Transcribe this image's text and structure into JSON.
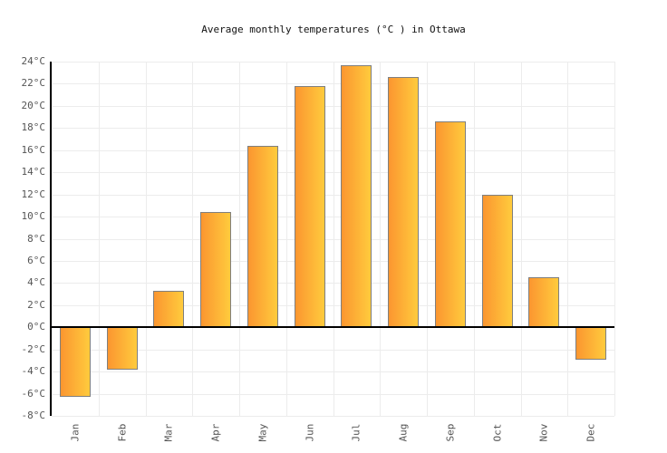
{
  "title": "Average monthly temperatures (°C ) in Ottawa",
  "chart_data": {
    "type": "bar",
    "title": "Average monthly temperatures (°C ) in Ottawa",
    "categories": [
      "Jan",
      "Feb",
      "Mar",
      "Apr",
      "May",
      "Jun",
      "Jul",
      "Aug",
      "Sep",
      "Oct",
      "Nov",
      "Dec"
    ],
    "values": [
      -6.3,
      -3.8,
      3.3,
      10.4,
      16.4,
      21.8,
      23.7,
      22.6,
      18.6,
      12.0,
      4.5,
      -2.9
    ],
    "unit": "°C",
    "xlabel": "",
    "ylabel": "",
    "ylim": [
      -8,
      24
    ],
    "y_tick_step": 2,
    "y_tick_labels": [
      "24°C",
      "22°C",
      "20°C",
      "18°C",
      "16°C",
      "14°C",
      "12°C",
      "10°C",
      "8°C",
      "6°C",
      "4°C",
      "2°C",
      "0°C",
      "-2°C",
      "-4°C",
      "-6°C",
      "-8°C"
    ],
    "grid": true,
    "legend": false
  },
  "colors": {
    "bar_gradient_start": "#fb9630",
    "bar_gradient_end": "#ffcb3d",
    "bar_border": "#7f7f7f",
    "axis": "#000000",
    "gridline": "#ececec",
    "tick_text": "#555555",
    "title_text": "#111111",
    "background": "#ffffff"
  }
}
